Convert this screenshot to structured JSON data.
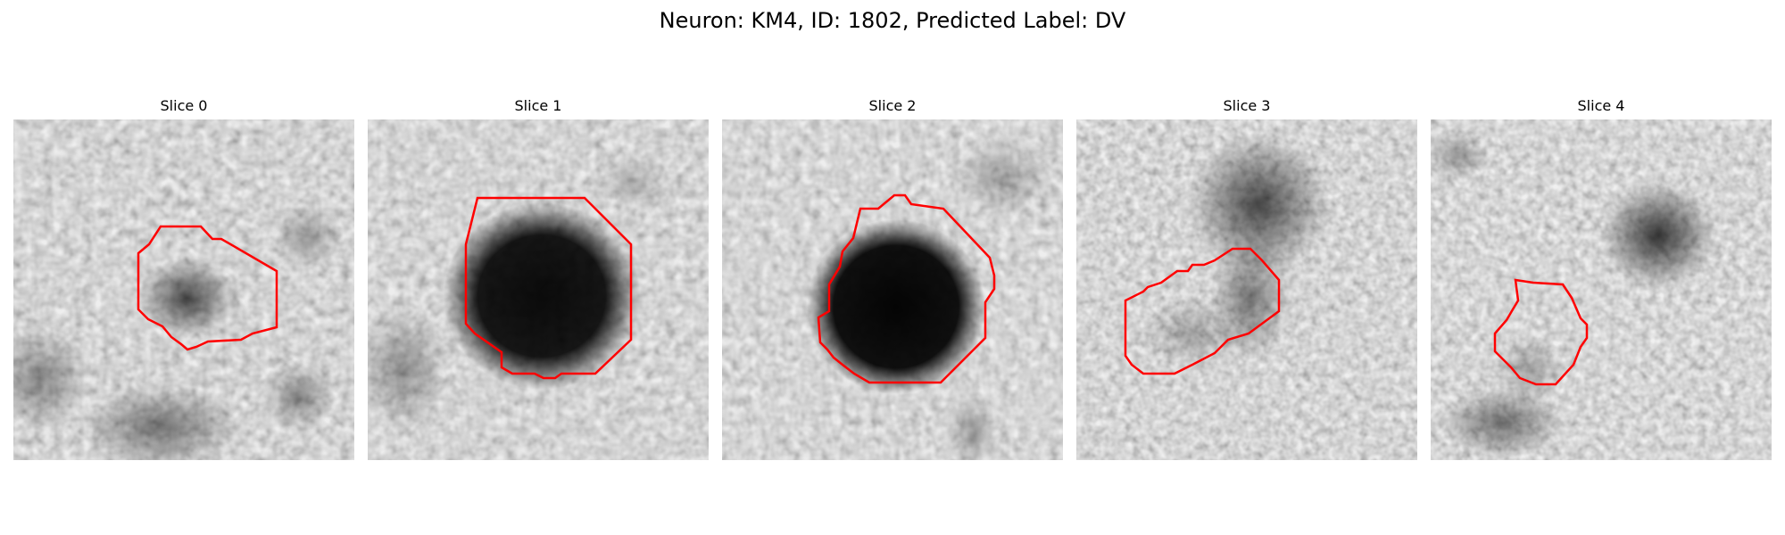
{
  "figure": {
    "title": "Neuron: KM4, ID: 1802, Predicted Label: DV"
  },
  "panels": [
    {
      "title": "Slice 0"
    },
    {
      "title": "Slice 1"
    },
    {
      "title": "Slice 2"
    },
    {
      "title": "Slice 3"
    },
    {
      "title": "Slice 4"
    }
  ],
  "style": {
    "contour_color": "#ff0000",
    "colormap": "grayscale (dark = high intensity)"
  }
}
